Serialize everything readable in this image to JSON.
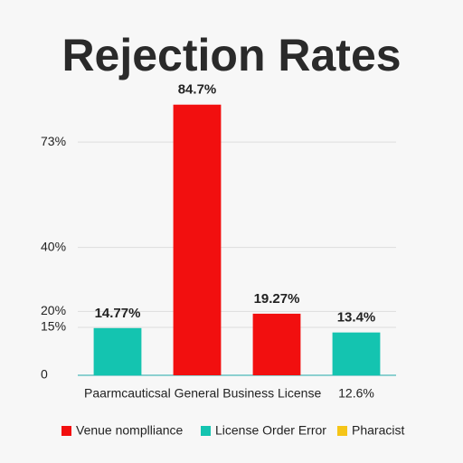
{
  "chart_data": {
    "type": "bar",
    "title": "Rejection Rates",
    "categories": [
      "Paarmcauticsal General Business License",
      null,
      null,
      "12.6%"
    ],
    "values": [
      14.77,
      84.7,
      19.27,
      13.4
    ],
    "value_labels": [
      "14.77%",
      "84.7%",
      "19.27%",
      "13.4%"
    ],
    "colors": [
      "#14c4b0",
      "#f20f0f",
      "#f20f0f",
      "#14c4b0"
    ],
    "ylim": [
      0,
      90
    ],
    "yticks": [
      0,
      {
        "value": 20,
        "label": "20%"
      },
      {
        "value": 40,
        "label": "40%"
      },
      {
        "value": 15,
        "label": "15%"
      },
      {
        "value": 73,
        "label": "73%"
      }
    ],
    "grid": true,
    "legend": [
      {
        "name": "Venue nomplliance",
        "color": "#f20f0f"
      },
      {
        "name": "License Order Error",
        "color": "#14c4b0"
      },
      {
        "name": "Pharacist",
        "color": "#f5c518"
      }
    ],
    "legend_position": "bottom"
  }
}
